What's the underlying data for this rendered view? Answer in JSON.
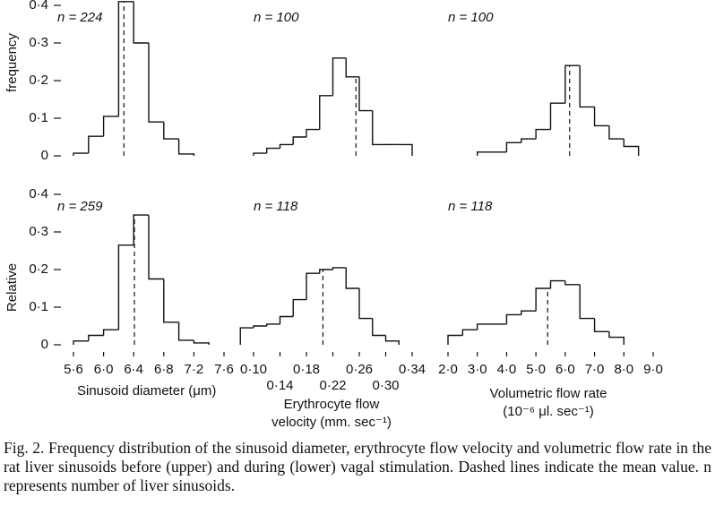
{
  "chart_data": [
    {
      "type": "histogram",
      "annotation": "n = 224",
      "ylabel": "frequency",
      "bins": [
        5.6,
        5.8,
        6.0,
        6.2,
        6.4,
        6.6,
        6.8,
        7.0,
        7.2
      ],
      "values": [
        0.007,
        0.052,
        0.105,
        0.41,
        0.3,
        0.09,
        0.045,
        0.005
      ],
      "mean": 6.27,
      "xlim": [
        5.6,
        7.6
      ],
      "ylim": [
        0,
        0.4
      ],
      "yticks": [
        0,
        {
          "value": 0.1,
          "label": "0·1"
        },
        {
          "value": 0.2,
          "label": "0·2"
        },
        {
          "value": 0.3,
          "label": "0·3"
        },
        {
          "value": 0.4,
          "label": "0·4"
        }
      ]
    },
    {
      "type": "histogram",
      "annotation": "n = 100",
      "bins": [
        0.1,
        0.12,
        0.14,
        0.16,
        0.18,
        0.2,
        0.22,
        0.24,
        0.26,
        0.28,
        0.3,
        0.32,
        0.34
      ],
      "values": [
        0.007,
        0.02,
        0.03,
        0.05,
        0.07,
        0.16,
        0.26,
        0.21,
        0.12,
        0.03,
        0.03,
        0.03
      ],
      "mean": 0.255,
      "xlim": [
        0.1,
        0.34
      ],
      "ylim": [
        0,
        0.4
      ]
    },
    {
      "type": "histogram",
      "annotation": "n = 100",
      "bins": [
        3.0,
        3.5,
        4.0,
        4.5,
        5.0,
        5.5,
        6.0,
        6.5,
        7.0,
        7.5,
        8.0,
        8.5
      ],
      "values": [
        0.01,
        0.01,
        0.035,
        0.045,
        0.07,
        0.14,
        0.24,
        0.13,
        0.08,
        0.045,
        0.025
      ],
      "mean": 6.15,
      "xlim": [
        2.0,
        9.0
      ],
      "ylim": [
        0,
        0.4
      ]
    },
    {
      "type": "histogram",
      "annotation": "n = 259",
      "ylabel": "Relative",
      "xlabel": [
        "Sinusoid diameter (μm)"
      ],
      "bins": [
        5.6,
        5.8,
        6.0,
        6.2,
        6.4,
        6.6,
        6.8,
        7.0,
        7.2,
        7.4
      ],
      "values": [
        0.01,
        0.025,
        0.04,
        0.265,
        0.345,
        0.175,
        0.06,
        0.012,
        0.005
      ],
      "mean": 6.41,
      "xlim": [
        5.6,
        7.6
      ],
      "ylim": [
        0,
        0.4
      ],
      "xticks": [
        {
          "value": 5.6,
          "label": "5·6"
        },
        {
          "value": 6.0,
          "label": "6·0"
        },
        {
          "value": 6.4,
          "label": "6·4"
        },
        {
          "value": 6.8,
          "label": "6·8"
        },
        {
          "value": 7.2,
          "label": "7·2"
        },
        {
          "value": 7.6,
          "label": "7·6"
        }
      ],
      "yticks": [
        0,
        {
          "value": 0.1,
          "label": "0·1"
        },
        {
          "value": 0.2,
          "label": "0·2"
        },
        {
          "value": 0.3,
          "label": "0·3"
        },
        {
          "value": 0.4,
          "label": "0·4"
        }
      ]
    },
    {
      "type": "histogram",
      "annotation": "n = 118",
      "xlabel": [
        "Erythrocyte flow",
        "velocity (mm. sec⁻¹)"
      ],
      "bins": [
        0.08,
        0.1,
        0.12,
        0.14,
        0.16,
        0.18,
        0.2,
        0.22,
        0.24,
        0.26,
        0.28,
        0.3,
        0.32
      ],
      "values": [
        0.045,
        0.05,
        0.055,
        0.075,
        0.12,
        0.19,
        0.2,
        0.205,
        0.15,
        0.07,
        0.025,
        0.01
      ],
      "mean": 0.205,
      "xlim": [
        0.1,
        0.34
      ],
      "ylim": [
        0,
        0.4
      ],
      "xticks": [
        {
          "value": 0.1,
          "label": "0·10"
        },
        {
          "value": 0.14,
          "label": "0·14"
        },
        {
          "value": 0.18,
          "label": "0·18"
        },
        {
          "value": 0.22,
          "label": "0·22"
        },
        {
          "value": 0.26,
          "label": "0·26"
        },
        {
          "value": 0.3,
          "label": "0·30"
        },
        {
          "value": 0.34,
          "label": "0·34"
        }
      ]
    },
    {
      "type": "histogram",
      "annotation": "n = 118",
      "xlabel": [
        "Volumetric flow rate",
        "(10⁻⁶ μl. sec⁻¹)"
      ],
      "bins": [
        2.0,
        2.5,
        3.0,
        3.5,
        4.0,
        4.5,
        5.0,
        5.5,
        6.0,
        6.5,
        7.0,
        7.5,
        8.0
      ],
      "values": [
        0.025,
        0.04,
        0.055,
        0.055,
        0.08,
        0.09,
        0.15,
        0.17,
        0.16,
        0.07,
        0.035,
        0.02
      ],
      "mean": 5.4,
      "xlim": [
        2.0,
        9.0
      ],
      "ylim": [
        0,
        0.4
      ],
      "xticks": [
        {
          "value": 2.0,
          "label": "2·0"
        },
        {
          "value": 3.0,
          "label": "3·0"
        },
        {
          "value": 4.0,
          "label": "4·0"
        },
        {
          "value": 5.0,
          "label": "5·0"
        },
        {
          "value": 6.0,
          "label": "6·0"
        },
        {
          "value": 7.0,
          "label": "7·0"
        },
        {
          "value": 8.0,
          "label": "8·0"
        },
        {
          "value": 9.0,
          "label": "9·0"
        }
      ]
    }
  ],
  "caption": "Fig. 2. Frequency distribution of the sinusoid diameter, erythrocyte flow velocity and volumetric flow rate in the rat liver sinusoids before (upper) and during (lower) vagal stimulation. Dashed lines indicate the mean value. n represents number of liver sinusoids."
}
